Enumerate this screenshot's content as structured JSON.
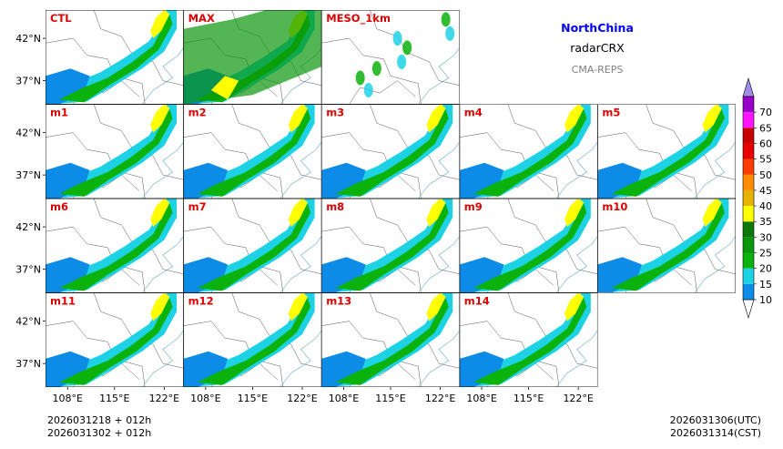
{
  "chart_data": {
    "type": "heatmap",
    "title": "NorthChina",
    "subtitle": "radarCRX",
    "source": "CMA-REPS",
    "panels": [
      {
        "label": "CTL",
        "row": 0,
        "col": 0,
        "style": "main"
      },
      {
        "label": "MAX",
        "row": 0,
        "col": 1,
        "style": "max"
      },
      {
        "label": "MESO_1km",
        "row": 0,
        "col": 2,
        "style": "meso"
      },
      {
        "label": "m1",
        "row": 1,
        "col": 0,
        "style": "main"
      },
      {
        "label": "m2",
        "row": 1,
        "col": 1,
        "style": "main"
      },
      {
        "label": "m3",
        "row": 1,
        "col": 2,
        "style": "main"
      },
      {
        "label": "m4",
        "row": 1,
        "col": 3,
        "style": "main"
      },
      {
        "label": "m5",
        "row": 1,
        "col": 4,
        "style": "main"
      },
      {
        "label": "m6",
        "row": 2,
        "col": 0,
        "style": "main"
      },
      {
        "label": "m7",
        "row": 2,
        "col": 1,
        "style": "main"
      },
      {
        "label": "m8",
        "row": 2,
        "col": 2,
        "style": "main"
      },
      {
        "label": "m9",
        "row": 2,
        "col": 3,
        "style": "main"
      },
      {
        "label": "m10",
        "row": 2,
        "col": 4,
        "style": "main"
      },
      {
        "label": "m11",
        "row": 3,
        "col": 0,
        "style": "main"
      },
      {
        "label": "m12",
        "row": 3,
        "col": 1,
        "style": "main"
      },
      {
        "label": "m13",
        "row": 3,
        "col": 2,
        "style": "main"
      },
      {
        "label": "m14",
        "row": 3,
        "col": 3,
        "style": "main"
      }
    ],
    "lat_ticks": [
      "42°N",
      "37°N"
    ],
    "lon_ticks": [
      "108°E",
      "115°E",
      "122°E"
    ],
    "colorbar": {
      "levels": [
        10,
        15,
        20,
        25,
        30,
        35,
        40,
        45,
        50,
        55,
        60,
        65,
        70
      ],
      "colors": [
        "#0c8ce6",
        "#1ed2e6",
        "#0cb20c",
        "#0a960a",
        "#0c780c",
        "#ffff00",
        "#e6b400",
        "#ff8c00",
        "#ff3c00",
        "#e60000",
        "#c80000",
        "#ff14ff",
        "#9600c8",
        "#a08ce6"
      ],
      "under_color": "#ffffff",
      "over_color": "#a08ce6"
    },
    "init_line1": "2026031218  +  012h",
    "init_line2": "2026031302  +  012h",
    "valid_utc": "2026031306(UTC)",
    "valid_cst": "2026031314(CST)"
  }
}
